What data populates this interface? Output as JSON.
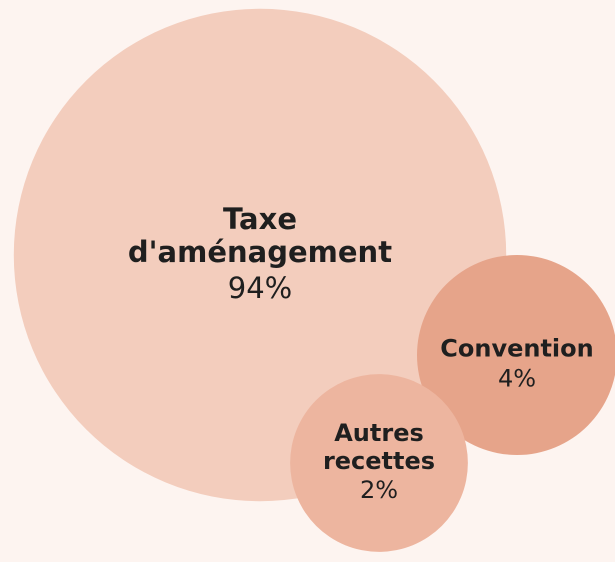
{
  "chart_data": {
    "type": "bubble",
    "categories": [
      "Taxe d'aménagement",
      "Convention",
      "Autres recettes"
    ],
    "values": [
      94,
      4,
      2
    ],
    "value_labels": [
      "94%",
      "4%",
      "2%"
    ],
    "colors": [
      "#f3cdbd",
      "#e6a48a",
      "#edb59f"
    ]
  }
}
